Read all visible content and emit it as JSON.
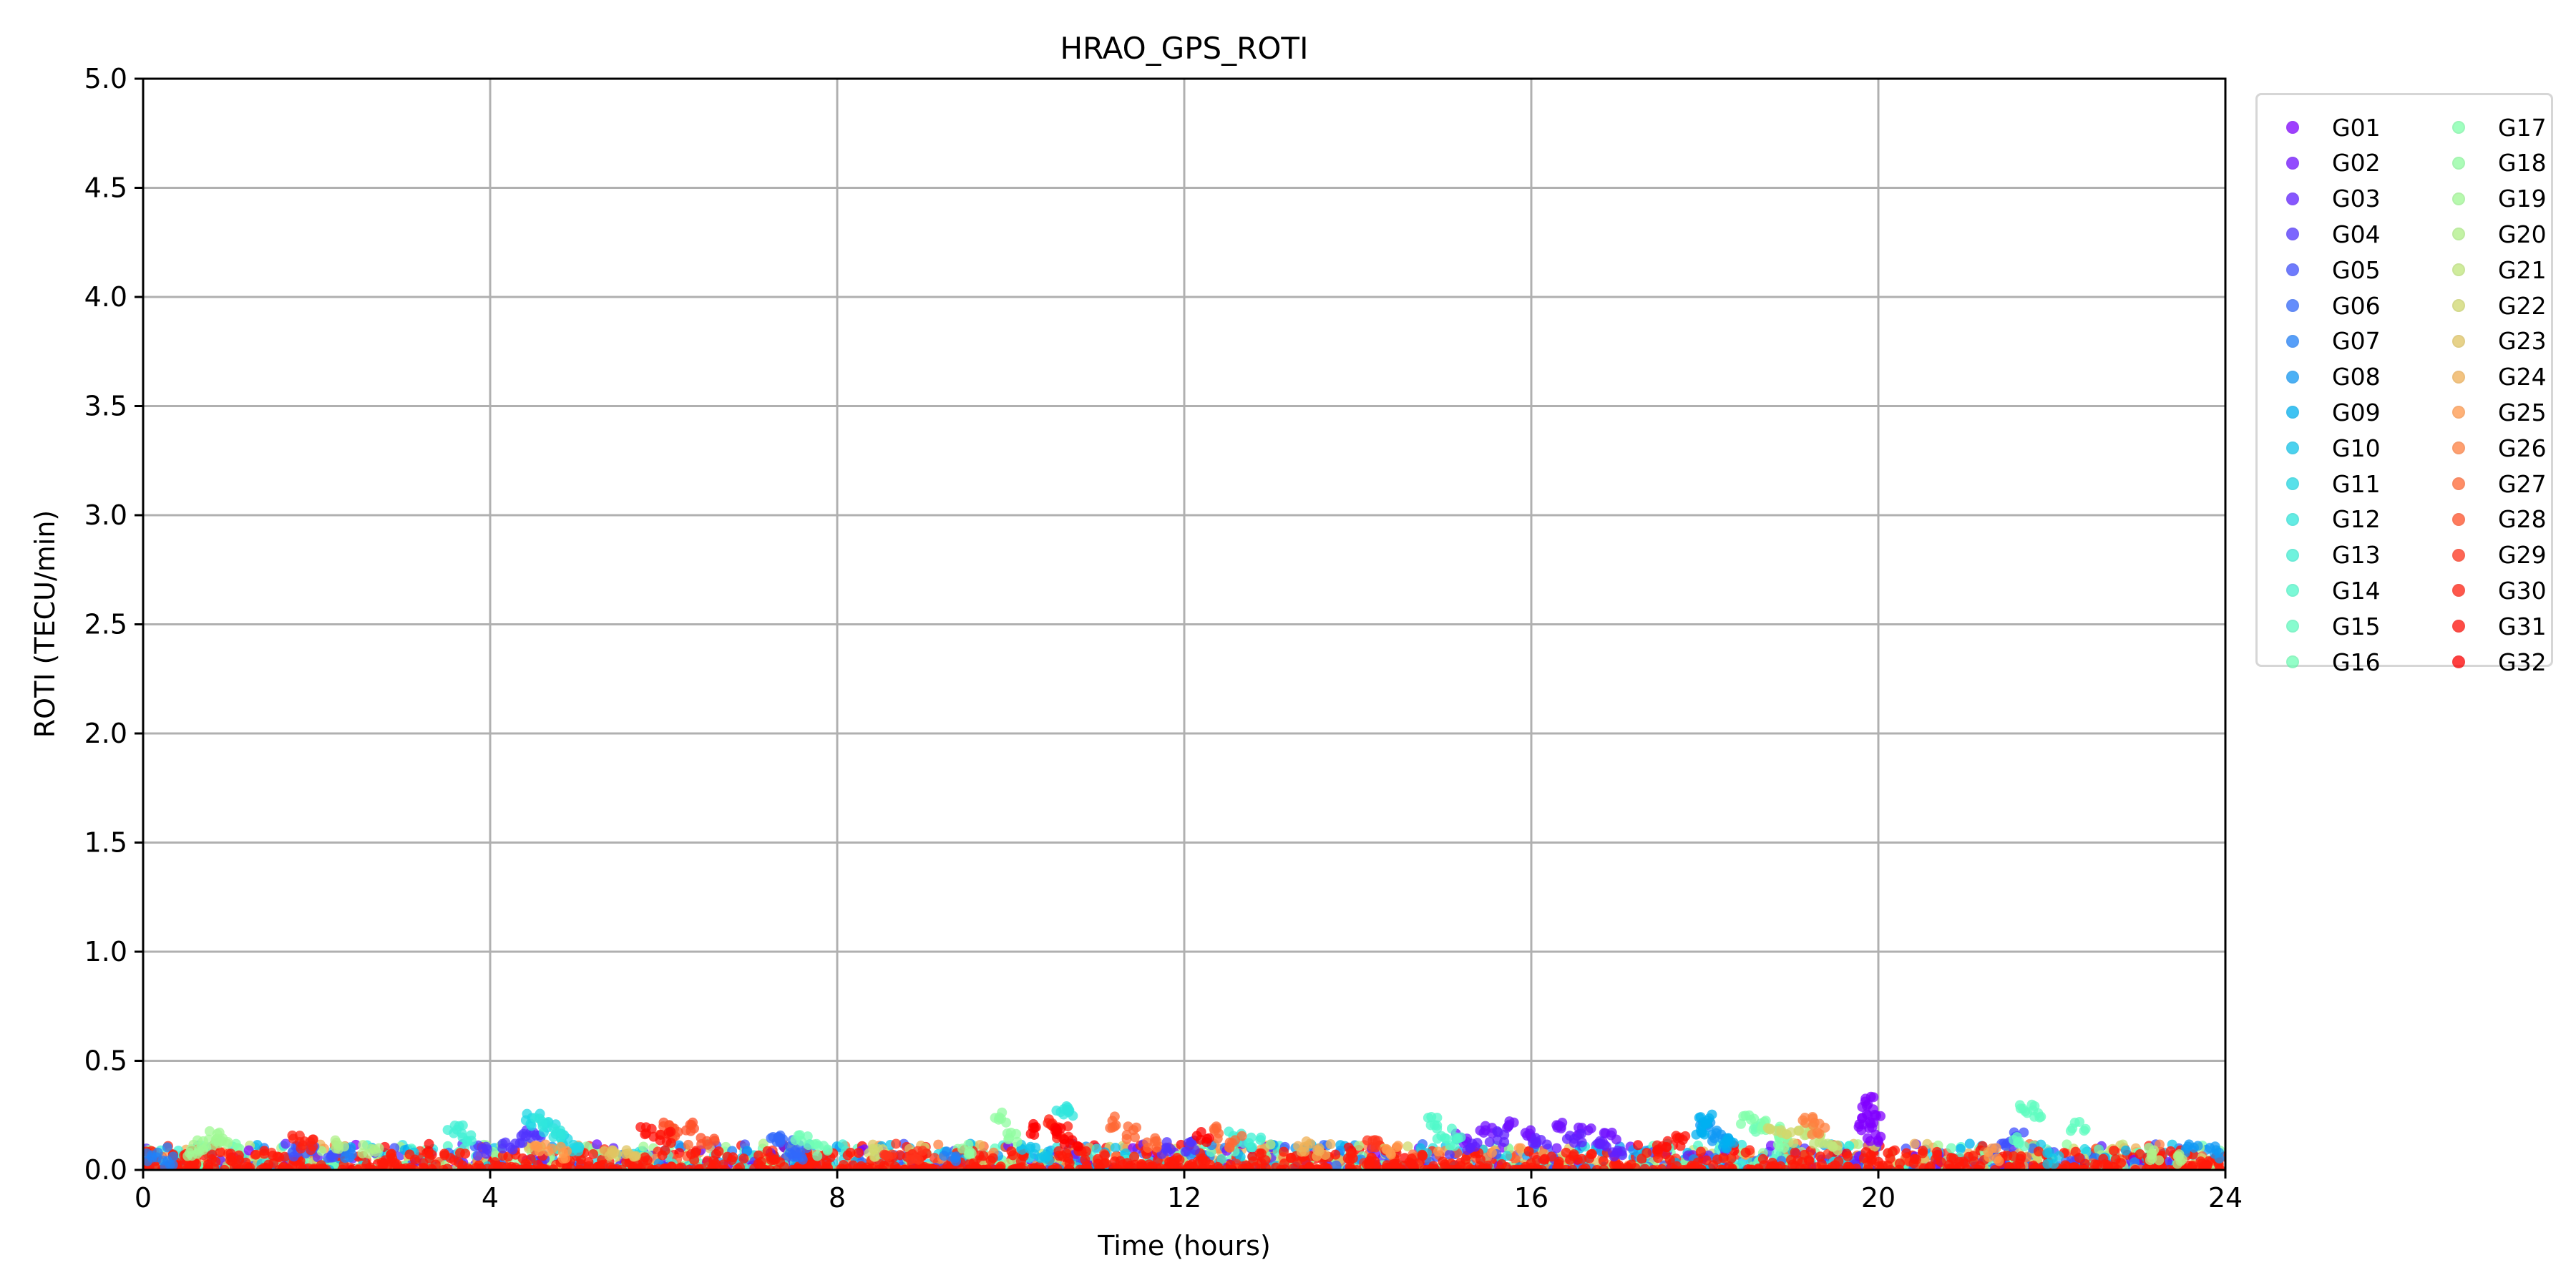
{
  "chart_data": {
    "type": "scatter",
    "title": "HRAO_GPS_ROTI",
    "xlabel": "Time (hours)",
    "ylabel": "ROTI (TECU/min)",
    "xlim": [
      0,
      24
    ],
    "ylim": [
      0,
      5
    ],
    "xticks": [
      0,
      4,
      8,
      12,
      16,
      20,
      24
    ],
    "yticks": [
      0.0,
      0.5,
      1.0,
      1.5,
      2.0,
      2.5,
      3.0,
      3.5,
      4.0,
      4.5,
      5.0
    ],
    "ytick_labels": [
      "0.0",
      "0.5",
      "1.0",
      "1.5",
      "2.0",
      "2.5",
      "3.0",
      "3.5",
      "4.0",
      "4.5",
      "5.0"
    ],
    "grid": true,
    "legend_position": "outside-right",
    "series": [
      {
        "name": "G01",
        "color": "#8000ff",
        "points": [
          [
            19.9,
            0.34
          ],
          [
            19.95,
            0.3
          ],
          [
            19.9,
            0.26
          ],
          [
            19.85,
            0.22
          ],
          [
            19.95,
            0.18
          ]
        ]
      },
      {
        "name": "G02",
        "color": "#7010ff",
        "points": [
          [
            15.2,
            0.18
          ],
          [
            15.5,
            0.22
          ],
          [
            15.8,
            0.25
          ],
          [
            16.0,
            0.2
          ],
          [
            16.3,
            0.24
          ],
          [
            16.6,
            0.2
          ],
          [
            16.9,
            0.18
          ]
        ]
      },
      {
        "name": "G03",
        "color": "#6020ff",
        "points": [
          [
            15.3,
            0.15
          ],
          [
            15.6,
            0.18
          ],
          [
            16.1,
            0.16
          ],
          [
            16.5,
            0.17
          ],
          [
            16.8,
            0.15
          ],
          [
            17.0,
            0.12
          ]
        ]
      },
      {
        "name": "G04",
        "color": "#5134fe",
        "points": [
          [
            3.9,
            0.12
          ],
          [
            4.2,
            0.14
          ],
          [
            4.4,
            0.18
          ],
          [
            4.5,
            0.2
          ],
          [
            11.8,
            0.13
          ],
          [
            12.1,
            0.14
          ]
        ]
      },
      {
        "name": "G05",
        "color": "#4050fd",
        "points": [
          [
            1.8,
            0.12
          ],
          [
            2.0,
            0.13
          ],
          [
            2.2,
            0.1
          ],
          [
            21.4,
            0.14
          ],
          [
            21.6,
            0.18
          ]
        ]
      },
      {
        "name": "G06",
        "color": "#3168fb",
        "points": [
          [
            7.3,
            0.18
          ],
          [
            7.4,
            0.16
          ],
          [
            7.5,
            0.12
          ],
          [
            7.6,
            0.1
          ]
        ]
      },
      {
        "name": "G07",
        "color": "#2080f8",
        "points": [
          [
            0.1,
            0.08
          ],
          [
            0.3,
            0.07
          ],
          [
            2.4,
            0.1
          ],
          [
            9.3,
            0.09
          ]
        ]
      },
      {
        "name": "G08",
        "color": "#1098f4",
        "points": [
          [
            18.0,
            0.22
          ],
          [
            18.1,
            0.18
          ],
          [
            18.2,
            0.15
          ],
          [
            23.6,
            0.12
          ],
          [
            23.9,
            0.11
          ]
        ]
      },
      {
        "name": "G09",
        "color": "#00b0f0",
        "points": [
          [
            18.0,
            0.26
          ],
          [
            17.95,
            0.22
          ],
          [
            18.3,
            0.16
          ]
        ]
      },
      {
        "name": "G10",
        "color": "#10c4ea",
        "points": [
          [
            10.2,
            0.12
          ],
          [
            10.4,
            0.1
          ],
          [
            22.0,
            0.08
          ]
        ]
      },
      {
        "name": "G11",
        "color": "#20d8e4",
        "points": [
          [
            4.5,
            0.26
          ],
          [
            4.7,
            0.22
          ],
          [
            4.9,
            0.17
          ],
          [
            5.0,
            0.14
          ]
        ]
      },
      {
        "name": "G12",
        "color": "#30e6dc",
        "points": [
          [
            4.6,
            0.24
          ],
          [
            4.8,
            0.2
          ],
          [
            10.6,
            0.32
          ],
          [
            10.7,
            0.3
          ]
        ]
      },
      {
        "name": "G13",
        "color": "#40f0d4",
        "points": [
          [
            3.6,
            0.22
          ],
          [
            3.7,
            0.18
          ],
          [
            12.6,
            0.18
          ],
          [
            12.8,
            0.16
          ]
        ]
      },
      {
        "name": "G14",
        "color": "#50f8ca",
        "points": [
          [
            14.9,
            0.26
          ],
          [
            15.0,
            0.2
          ],
          [
            15.1,
            0.15
          ]
        ]
      },
      {
        "name": "G15",
        "color": "#60fcc0",
        "points": [
          [
            21.7,
            0.32
          ],
          [
            21.8,
            0.3
          ],
          [
            21.6,
            0.16
          ],
          [
            22.3,
            0.22
          ]
        ]
      },
      {
        "name": "G16",
        "color": "#70feb6",
        "points": [
          [
            7.6,
            0.16
          ],
          [
            7.8,
            0.12
          ],
          [
            18.6,
            0.22
          ]
        ]
      },
      {
        "name": "G17",
        "color": "#80ffaa",
        "points": [
          [
            18.5,
            0.26
          ],
          [
            18.7,
            0.24
          ],
          [
            18.8,
            0.2
          ],
          [
            18.9,
            0.16
          ]
        ]
      },
      {
        "name": "G18",
        "color": "#90fca0",
        "points": [
          [
            9.9,
            0.27
          ],
          [
            10.0,
            0.18
          ],
          [
            9.5,
            0.12
          ]
        ]
      },
      {
        "name": "G19",
        "color": "#a0f894",
        "points": [
          [
            0.8,
            0.18
          ],
          [
            0.7,
            0.15
          ],
          [
            0.6,
            0.12
          ],
          [
            0.9,
            0.17
          ]
        ]
      },
      {
        "name": "G20",
        "color": "#b0f088",
        "points": [
          [
            2.3,
            0.14
          ],
          [
            2.6,
            0.12
          ],
          [
            23.2,
            0.1
          ],
          [
            23.5,
            0.08
          ]
        ]
      },
      {
        "name": "G21",
        "color": "#c0e67c",
        "points": [
          [
            19.2,
            0.2
          ],
          [
            19.3,
            0.17
          ],
          [
            19.5,
            0.14
          ]
        ]
      },
      {
        "name": "G22",
        "color": "#d0d86e",
        "points": [
          [
            18.8,
            0.2
          ],
          [
            19.0,
            0.18
          ],
          [
            8.5,
            0.11
          ]
        ]
      },
      {
        "name": "G23",
        "color": "#e0c462",
        "points": [
          [
            5.4,
            0.12
          ],
          [
            5.6,
            0.11
          ]
        ]
      },
      {
        "name": "G24",
        "color": "#f0b056",
        "points": [
          [
            13.4,
            0.14
          ],
          [
            13.6,
            0.12
          ]
        ]
      },
      {
        "name": "G25",
        "color": "#ff984a",
        "points": [
          [
            4.6,
            0.13
          ],
          [
            4.8,
            0.11
          ],
          [
            14.4,
            0.12
          ],
          [
            21.3,
            0.1
          ]
        ]
      },
      {
        "name": "G26",
        "color": "#ff8040",
        "points": [
          [
            19.2,
            0.25
          ],
          [
            19.3,
            0.22
          ]
        ]
      },
      {
        "name": "G27",
        "color": "#ff6834",
        "points": [
          [
            11.2,
            0.25
          ],
          [
            11.4,
            0.2
          ],
          [
            11.6,
            0.16
          ],
          [
            12.4,
            0.2
          ],
          [
            12.6,
            0.16
          ]
        ]
      },
      {
        "name": "G28",
        "color": "#ff5028",
        "points": [
          [
            6.0,
            0.22
          ],
          [
            6.1,
            0.2
          ],
          [
            6.3,
            0.22
          ],
          [
            6.5,
            0.16
          ]
        ]
      },
      {
        "name": "G29",
        "color": "#ff341c",
        "points": [
          [
            8.6,
            0.12
          ],
          [
            8.9,
            0.1
          ],
          [
            14.2,
            0.16
          ]
        ]
      },
      {
        "name": "G30",
        "color": "#ff2010",
        "points": [
          [
            1.8,
            0.16
          ],
          [
            1.9,
            0.14
          ],
          [
            10.5,
            0.25
          ],
          [
            10.6,
            0.2
          ]
        ]
      },
      {
        "name": "G31",
        "color": "#ff1008",
        "points": [
          [
            5.8,
            0.2
          ],
          [
            6.0,
            0.18
          ],
          [
            17.5,
            0.14
          ],
          [
            17.7,
            0.16
          ]
        ]
      },
      {
        "name": "G32",
        "color": "#ff0000",
        "points": [
          [
            10.3,
            0.22
          ],
          [
            10.5,
            0.2
          ],
          [
            10.7,
            0.15
          ],
          [
            12.2,
            0.18
          ]
        ]
      }
    ]
  }
}
